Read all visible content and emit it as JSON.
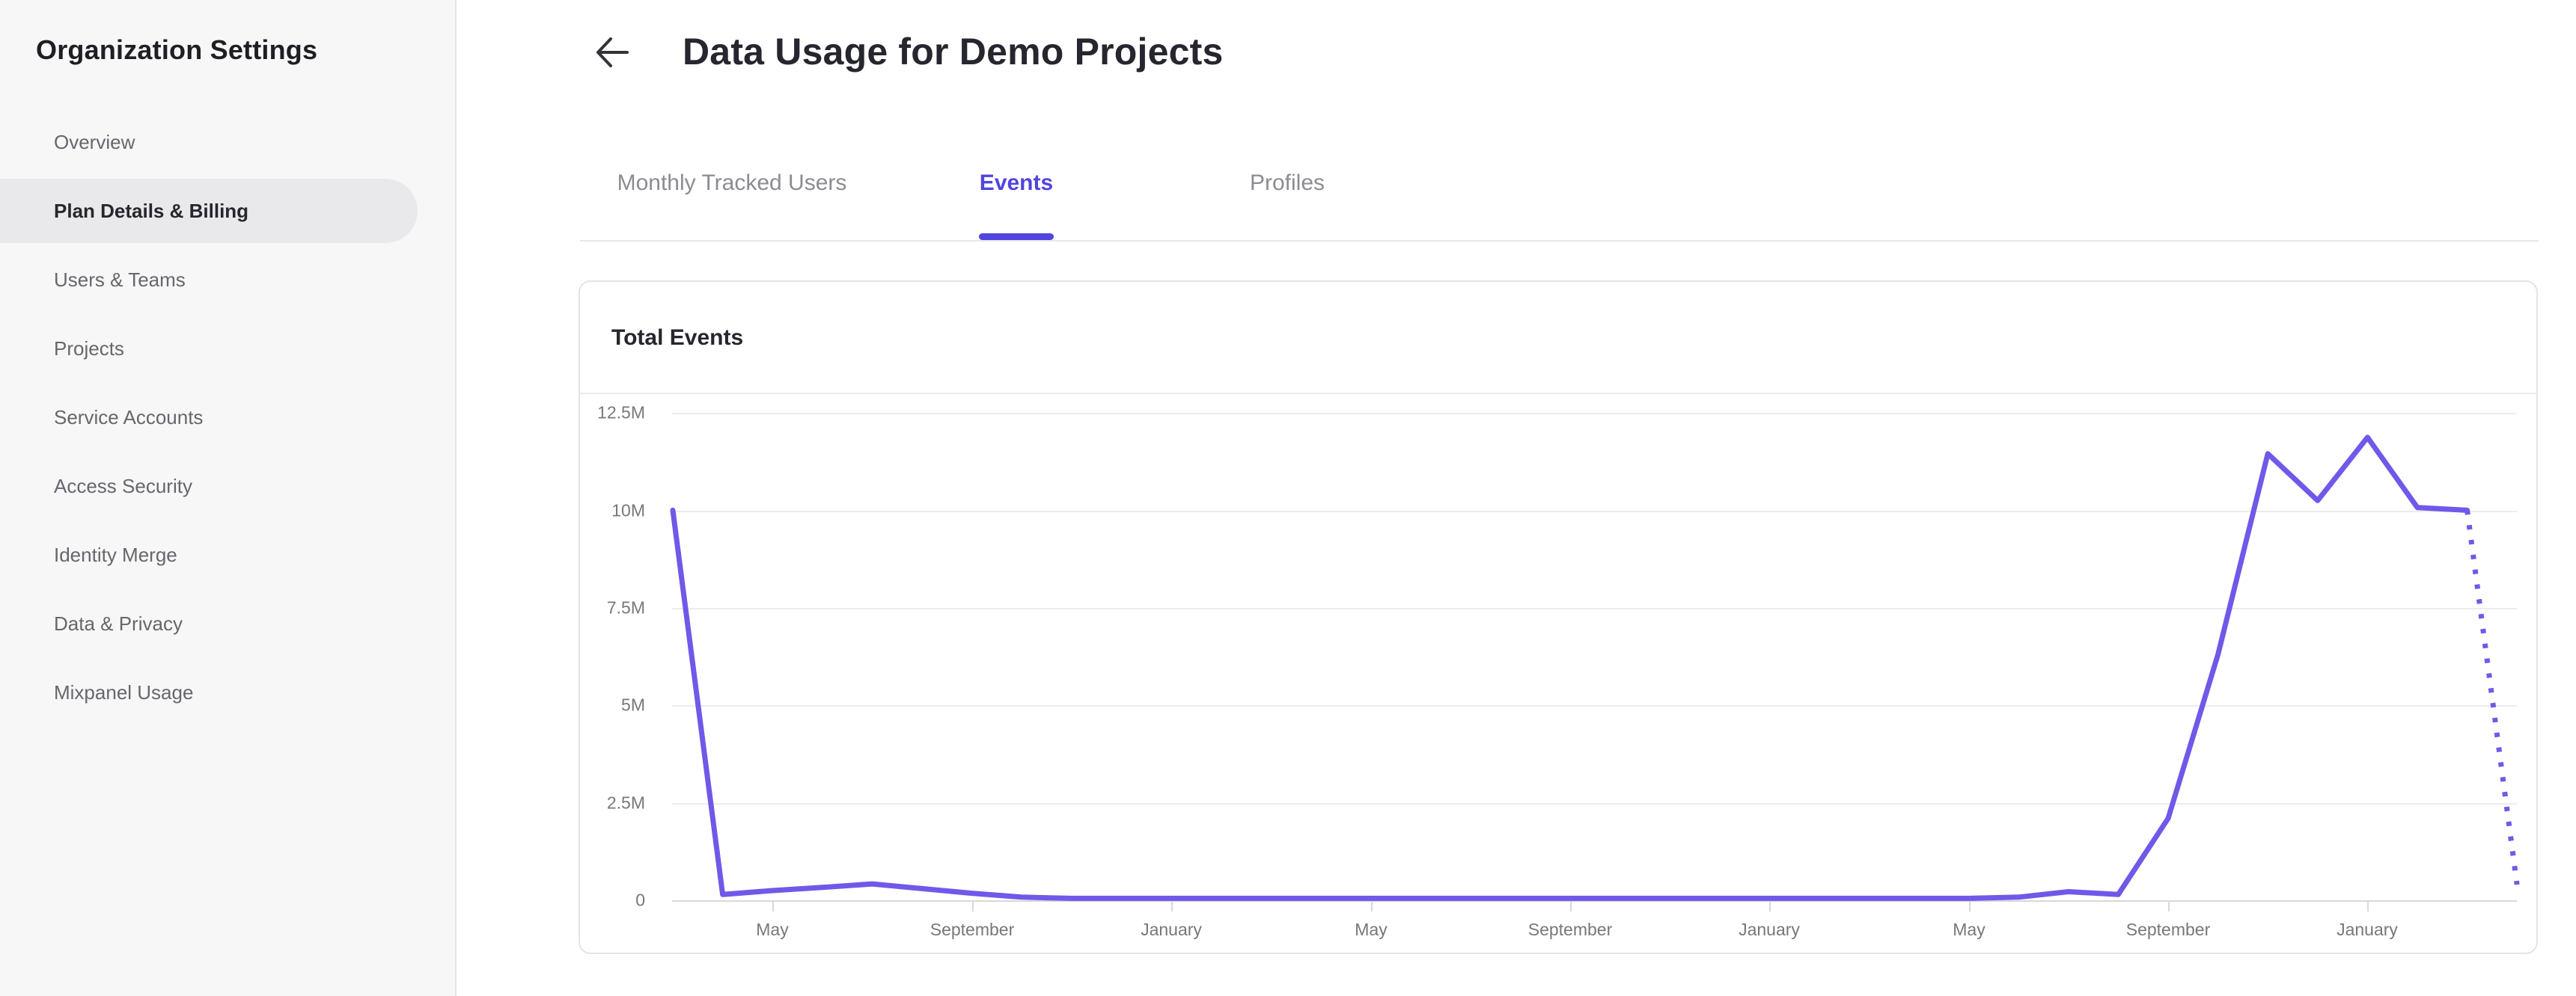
{
  "sidebar": {
    "title": "Organization Settings",
    "items": [
      {
        "label": "Overview",
        "active": false
      },
      {
        "label": "Plan Details & Billing",
        "active": true
      },
      {
        "label": "Users & Teams",
        "active": false
      },
      {
        "label": "Projects",
        "active": false
      },
      {
        "label": "Service Accounts",
        "active": false
      },
      {
        "label": "Access Security",
        "active": false
      },
      {
        "label": "Identity Merge",
        "active": false
      },
      {
        "label": "Data & Privacy",
        "active": false
      },
      {
        "label": "Mixpanel Usage",
        "active": false
      }
    ]
  },
  "header": {
    "title": "Data Usage for Demo Projects",
    "back_icon": "arrow-left-icon"
  },
  "tabs": [
    {
      "label": "Monthly Tracked Users",
      "active": false
    },
    {
      "label": "Events",
      "active": true
    },
    {
      "label": "Profiles",
      "active": false
    }
  ],
  "card": {
    "title": "Total Events"
  },
  "colors": {
    "accent_purple": "#5144df",
    "line_purple": "#7158e8",
    "sidebar_bg": "#f7f7f8",
    "active_pill_bg": "#e9e9eb",
    "gridline": "#ececee",
    "axis_line": "#d8d8dc",
    "axis_text": "#77777d",
    "inactive_tab_text": "#8b8b92",
    "dark_text": "#26262e",
    "sidebar_text": "#66666d"
  },
  "chart_data": {
    "type": "line",
    "title": "Total Events",
    "unit": "events (millions)",
    "grid": true,
    "legend": false,
    "ylim": [
      0,
      12.5
    ],
    "y_ticks": [
      "0",
      "2.5M",
      "5M",
      "7.5M",
      "10M",
      "12.5M"
    ],
    "x_tick_labels": [
      "May",
      "September",
      "January",
      "May",
      "September",
      "January",
      "May",
      "September",
      "January"
    ],
    "x_tick_month_indices": [
      2,
      6,
      10,
      14,
      18,
      22,
      26,
      30,
      34
    ],
    "values_monthly_millions": [
      10,
      0.15,
      0.25,
      0.33,
      0.42,
      0.3,
      0.18,
      0.08,
      0.05,
      0.05,
      0.05,
      0.05,
      0.05,
      0.05,
      0.05,
      0.05,
      0.05,
      0.05,
      0.05,
      0.05,
      0.05,
      0.05,
      0.05,
      0.05,
      0.05,
      0.05,
      0.05,
      0.08,
      0.22,
      0.15,
      2.1,
      6.3,
      11.45,
      10.25,
      11.87,
      10.07,
      10.0,
      0.4
    ],
    "dotted_from_index": 36,
    "note_dotted": "final segment rendered as dotted projection"
  }
}
